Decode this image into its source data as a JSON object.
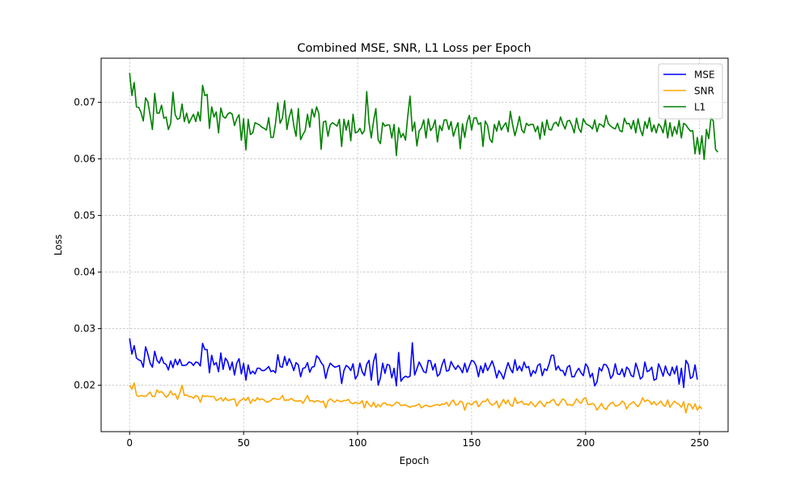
{
  "chart_data": {
    "type": "line",
    "title": "Combined MSE, SNR, L1 Loss per Epoch",
    "xlabel": "Epoch",
    "ylabel": "Loss",
    "xlim": [
      -12.5,
      262.5
    ],
    "ylim": [
      0.0118,
      0.0778
    ],
    "xticks": [
      0,
      50,
      100,
      150,
      200,
      250
    ],
    "yticks": [
      0.02,
      0.03,
      0.04,
      0.05,
      0.06,
      0.07
    ],
    "grid": true,
    "legend_position": "top-right",
    "x_start": 0,
    "x_step": 1,
    "series": [
      {
        "name": "MSE",
        "color": "#0000ff",
        "values": [
          0.0283,
          0.0255,
          0.027,
          0.0248,
          0.0245,
          0.0243,
          0.0232,
          0.0268,
          0.0255,
          0.0239,
          0.0232,
          0.026,
          0.0244,
          0.0239,
          0.025,
          0.0239,
          0.0237,
          0.0227,
          0.0243,
          0.0231,
          0.0246,
          0.0236,
          0.0246,
          0.0235,
          0.0235,
          0.0236,
          0.0241,
          0.024,
          0.0235,
          0.0241,
          0.024,
          0.0234,
          0.0274,
          0.0263,
          0.0263,
          0.0222,
          0.0253,
          0.0236,
          0.024,
          0.0224,
          0.0257,
          0.0228,
          0.0248,
          0.0242,
          0.0227,
          0.0241,
          0.0218,
          0.0239,
          0.0247,
          0.022,
          0.0239,
          0.0209,
          0.0236,
          0.022,
          0.0225,
          0.022,
          0.023,
          0.023,
          0.0226,
          0.0226,
          0.0229,
          0.0233,
          0.0224,
          0.0226,
          0.0222,
          0.0254,
          0.0233,
          0.0232,
          0.0251,
          0.0235,
          0.0247,
          0.0238,
          0.0226,
          0.024,
          0.0236,
          0.0215,
          0.023,
          0.0231,
          0.024,
          0.0223,
          0.0232,
          0.0233,
          0.0252,
          0.0248,
          0.024,
          0.0235,
          0.0212,
          0.0229,
          0.0239,
          0.0235,
          0.0232,
          0.0233,
          0.0235,
          0.0203,
          0.0226,
          0.0235,
          0.0232,
          0.0226,
          0.0238,
          0.0211,
          0.0218,
          0.0239,
          0.0224,
          0.0217,
          0.0237,
          0.0244,
          0.0209,
          0.0242,
          0.0256,
          0.02,
          0.0213,
          0.0239,
          0.0221,
          0.0237,
          0.0235,
          0.0213,
          0.023,
          0.0199,
          0.0258,
          0.0207,
          0.0213,
          0.0216,
          0.0214,
          0.0216,
          0.0275,
          0.0218,
          0.0229,
          0.0241,
          0.0233,
          0.0224,
          0.0222,
          0.0244,
          0.0243,
          0.0227,
          0.0238,
          0.0216,
          0.022,
          0.0236,
          0.0246,
          0.0225,
          0.0226,
          0.0242,
          0.0234,
          0.0228,
          0.0235,
          0.023,
          0.0222,
          0.0239,
          0.0223,
          0.0234,
          0.0244,
          0.0242,
          0.0234,
          0.0215,
          0.0234,
          0.0222,
          0.0239,
          0.0226,
          0.0234,
          0.0243,
          0.0231,
          0.0213,
          0.0226,
          0.022,
          0.0211,
          0.0227,
          0.024,
          0.0229,
          0.0222,
          0.0245,
          0.0226,
          0.0234,
          0.0225,
          0.0241,
          0.0231,
          0.0233,
          0.0216,
          0.0226,
          0.0221,
          0.0235,
          0.0238,
          0.0217,
          0.0229,
          0.0226,
          0.0238,
          0.0253,
          0.0253,
          0.0227,
          0.0234,
          0.0226,
          0.0226,
          0.0217,
          0.0232,
          0.0235,
          0.0215,
          0.0215,
          0.0224,
          0.023,
          0.0222,
          0.0217,
          0.0238,
          0.0232,
          0.0214,
          0.0221,
          0.0199,
          0.0206,
          0.0231,
          0.0225,
          0.0237,
          0.0236,
          0.0229,
          0.0212,
          0.0218,
          0.0238,
          0.022,
          0.0219,
          0.0229,
          0.0215,
          0.0232,
          0.0228,
          0.0217,
          0.0215,
          0.0239,
          0.0227,
          0.0211,
          0.0215,
          0.0241,
          0.0224,
          0.0226,
          0.0232,
          0.0209,
          0.0211,
          0.0238,
          0.0228,
          0.0216,
          0.0234,
          0.0222,
          0.0217,
          0.0232,
          0.022,
          0.0234,
          0.0202,
          0.023,
          0.0196,
          0.0244,
          0.0237,
          0.0212,
          0.0215,
          0.0236,
          0.021
        ],
        "note": "MSE noisy 0.020-0.028"
      },
      {
        "name": "SNR",
        "color": "#ffa500",
        "values": [
          0.02,
          0.0193,
          0.0204,
          0.0183,
          0.018,
          0.0182,
          0.0181,
          0.018,
          0.0184,
          0.0188,
          0.018,
          0.018,
          0.0192,
          0.0187,
          0.0189,
          0.0184,
          0.0179,
          0.0182,
          0.019,
          0.0183,
          0.0185,
          0.0175,
          0.0186,
          0.02,
          0.0182,
          0.0183,
          0.018,
          0.018,
          0.0177,
          0.0182,
          0.018,
          0.017,
          0.0182,
          0.018,
          0.0181,
          0.018,
          0.018,
          0.018,
          0.0173,
          0.0175,
          0.0178,
          0.0172,
          0.0178,
          0.0173,
          0.0174,
          0.0175,
          0.0176,
          0.0163,
          0.0171,
          0.0174,
          0.0177,
          0.0173,
          0.0179,
          0.0168,
          0.0175,
          0.0172,
          0.0178,
          0.0174,
          0.0176,
          0.0174,
          0.017,
          0.0171,
          0.0173,
          0.0177,
          0.0176,
          0.0175,
          0.0176,
          0.0182,
          0.0173,
          0.0174,
          0.0174,
          0.0177,
          0.0173,
          0.0172,
          0.0172,
          0.0173,
          0.0168,
          0.0175,
          0.0182,
          0.0172,
          0.0173,
          0.017,
          0.0173,
          0.0172,
          0.017,
          0.0172,
          0.016,
          0.0172,
          0.0176,
          0.0173,
          0.017,
          0.0174,
          0.0172,
          0.0171,
          0.0173,
          0.0173,
          0.0175,
          0.0169,
          0.0167,
          0.017,
          0.0168,
          0.0168,
          0.0173,
          0.016,
          0.0172,
          0.0166,
          0.0162,
          0.017,
          0.0161,
          0.0166,
          0.0162,
          0.0168,
          0.0169,
          0.0165,
          0.0166,
          0.0163,
          0.0166,
          0.017,
          0.0169,
          0.0164,
          0.0165,
          0.0165,
          0.0163,
          0.0161,
          0.0163,
          0.0163,
          0.0165,
          0.0167,
          0.016,
          0.0163,
          0.0165,
          0.0163,
          0.0162,
          0.0164,
          0.0165,
          0.0166,
          0.0164,
          0.0167,
          0.0166,
          0.017,
          0.0163,
          0.017,
          0.0174,
          0.0165,
          0.0166,
          0.0172,
          0.017,
          0.0156,
          0.0168,
          0.0168,
          0.0165,
          0.017,
          0.0172,
          0.0162,
          0.0167,
          0.0172,
          0.0171,
          0.0176,
          0.0168,
          0.0165,
          0.0167,
          0.0172,
          0.016,
          0.0168,
          0.0175,
          0.0167,
          0.0174,
          0.0165,
          0.0163,
          0.0178,
          0.0168,
          0.017,
          0.0172,
          0.0166,
          0.0167,
          0.0165,
          0.0171,
          0.0166,
          0.0162,
          0.0168,
          0.0172,
          0.0167,
          0.0162,
          0.017,
          0.0169,
          0.0173,
          0.0175,
          0.0167,
          0.0164,
          0.017,
          0.0176,
          0.0173,
          0.0165,
          0.0166,
          0.0164,
          0.0168,
          0.0176,
          0.0171,
          0.0168,
          0.0176,
          0.0178,
          0.0166,
          0.0166,
          0.0168,
          0.0165,
          0.0156,
          0.0162,
          0.0168,
          0.016,
          0.0157,
          0.0164,
          0.0168,
          0.017,
          0.0163,
          0.0164,
          0.0166,
          0.0172,
          0.0169,
          0.0158,
          0.0165,
          0.0168,
          0.0171,
          0.0166,
          0.0162,
          0.0168,
          0.0178,
          0.0171,
          0.0174,
          0.0172,
          0.0166,
          0.0171,
          0.0165,
          0.0168,
          0.0172,
          0.0165,
          0.0163,
          0.0174,
          0.0161,
          0.0167,
          0.0172,
          0.0168,
          0.0166,
          0.0161,
          0.0171,
          0.0151,
          0.0167,
          0.0166,
          0.0158,
          0.0167,
          0.0156,
          0.0163,
          0.0158
        ],
        "note": "SNR ~0.016-0.020"
      },
      {
        "name": "L1",
        "color": "#008000",
        "values": [
          0.0752,
          0.0712,
          0.0735,
          0.0692,
          0.0691,
          0.0682,
          0.0667,
          0.0708,
          0.0701,
          0.0677,
          0.0652,
          0.0716,
          0.0681,
          0.0681,
          0.0695,
          0.0672,
          0.0674,
          0.0652,
          0.0663,
          0.0718,
          0.0678,
          0.067,
          0.0672,
          0.0697,
          0.0666,
          0.0681,
          0.0663,
          0.0671,
          0.0679,
          0.0666,
          0.0683,
          0.0667,
          0.073,
          0.0712,
          0.0714,
          0.0654,
          0.0692,
          0.0674,
          0.0683,
          0.0646,
          0.069,
          0.0675,
          0.0672,
          0.0679,
          0.0682,
          0.0679,
          0.0659,
          0.0671,
          0.0678,
          0.0633,
          0.0671,
          0.0616,
          0.067,
          0.0643,
          0.0646,
          0.0664,
          0.0662,
          0.066,
          0.0656,
          0.0654,
          0.0651,
          0.0673,
          0.0638,
          0.0638,
          0.0663,
          0.0699,
          0.0663,
          0.0672,
          0.0703,
          0.0652,
          0.0674,
          0.0688,
          0.0659,
          0.064,
          0.0689,
          0.0634,
          0.0643,
          0.065,
          0.0679,
          0.0656,
          0.0688,
          0.0674,
          0.0692,
          0.068,
          0.0617,
          0.0665,
          0.0667,
          0.064,
          0.066,
          0.0664,
          0.0661,
          0.0658,
          0.067,
          0.0622,
          0.067,
          0.0651,
          0.0668,
          0.0632,
          0.0679,
          0.0646,
          0.0648,
          0.0654,
          0.0644,
          0.065,
          0.0719,
          0.0664,
          0.0637,
          0.0667,
          0.0689,
          0.0634,
          0.0627,
          0.0664,
          0.0658,
          0.066,
          0.066,
          0.0637,
          0.0661,
          0.0606,
          0.0655,
          0.0638,
          0.0645,
          0.0633,
          0.0676,
          0.0711,
          0.0649,
          0.0665,
          0.0623,
          0.065,
          0.0655,
          0.0669,
          0.0637,
          0.0671,
          0.065,
          0.0656,
          0.0669,
          0.063,
          0.0659,
          0.065,
          0.0669,
          0.0669,
          0.0652,
          0.0666,
          0.064,
          0.0653,
          0.0664,
          0.0618,
          0.0662,
          0.0638,
          0.0665,
          0.0677,
          0.0651,
          0.0672,
          0.0673,
          0.0661,
          0.0664,
          0.0622,
          0.0667,
          0.0659,
          0.0635,
          0.0629,
          0.0661,
          0.0649,
          0.0667,
          0.0651,
          0.0658,
          0.0664,
          0.0648,
          0.0684,
          0.066,
          0.0641,
          0.0657,
          0.0675,
          0.0651,
          0.0646,
          0.0663,
          0.0659,
          0.0661,
          0.0661,
          0.0648,
          0.0658,
          0.0635,
          0.0665,
          0.0642,
          0.0669,
          0.0652,
          0.0651,
          0.0662,
          0.0665,
          0.0658,
          0.0674,
          0.0662,
          0.0653,
          0.0667,
          0.0668,
          0.0659,
          0.0646,
          0.0672,
          0.0654,
          0.0647,
          0.0671,
          0.0663,
          0.066,
          0.0658,
          0.0653,
          0.0669,
          0.0648,
          0.0662,
          0.066,
          0.0656,
          0.0677,
          0.0662,
          0.0658,
          0.0655,
          0.0653,
          0.0663,
          0.065,
          0.0648,
          0.0672,
          0.0662,
          0.0663,
          0.0653,
          0.0668,
          0.0646,
          0.0671,
          0.0652,
          0.0641,
          0.0666,
          0.0654,
          0.0673,
          0.0648,
          0.066,
          0.0646,
          0.0662,
          0.0657,
          0.0646,
          0.0669,
          0.0637,
          0.0664,
          0.064,
          0.0657,
          0.0644,
          0.0668,
          0.0637,
          0.0663,
          0.066,
          0.0654,
          0.0649,
          0.065,
          0.0609,
          0.0638,
          0.0608,
          0.0641,
          0.0599,
          0.0652,
          0.0636,
          0.0673,
          0.0667,
          0.0617,
          0.0612
        ],
        "note": "L1 ~0.060-0.075"
      }
    ]
  }
}
